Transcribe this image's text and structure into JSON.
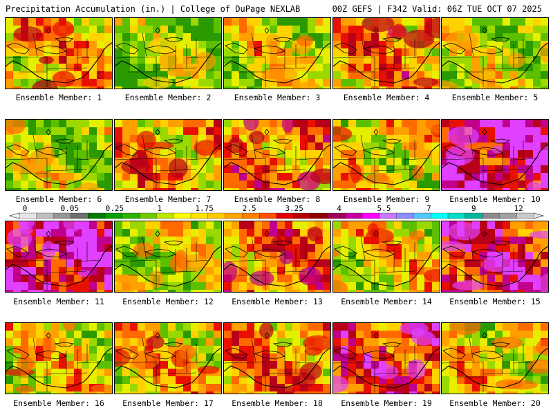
{
  "header": {
    "title": "Precipitation Accumulation (in.) | College of DuPage NEXLAB",
    "run_info": "00Z GEFS | F342 Valid: 06Z TUE OCT 07 2025"
  },
  "caption_prefix": "Ensemble Member: ",
  "members": [
    {
      "id": 1,
      "label": "Ensemble Member: 1",
      "intensity": 0.45
    },
    {
      "id": 2,
      "label": "Ensemble Member: 2",
      "intensity": 0.15
    },
    {
      "id": 3,
      "label": "Ensemble Member: 3",
      "intensity": 0.3
    },
    {
      "id": 4,
      "label": "Ensemble Member: 4",
      "intensity": 0.5
    },
    {
      "id": 5,
      "label": "Ensemble Member: 5",
      "intensity": 0.25
    },
    {
      "id": 6,
      "label": "Ensemble Member: 6",
      "intensity": 0.2
    },
    {
      "id": 7,
      "label": "Ensemble Member: 7",
      "intensity": 0.45
    },
    {
      "id": 8,
      "label": "Ensemble Member: 8",
      "intensity": 0.55
    },
    {
      "id": 9,
      "label": "Ensemble Member: 9",
      "intensity": 0.35
    },
    {
      "id": 10,
      "label": "Ensemble Member: 10",
      "intensity": 0.85
    },
    {
      "id": 11,
      "label": "Ensemble Member: 11",
      "intensity": 0.85
    },
    {
      "id": 12,
      "label": "Ensemble Member: 12",
      "intensity": 0.25
    },
    {
      "id": 13,
      "label": "Ensemble Member: 13",
      "intensity": 0.55
    },
    {
      "id": 14,
      "label": "Ensemble Member: 14",
      "intensity": 0.35
    },
    {
      "id": 15,
      "label": "Ensemble Member: 15",
      "intensity": 0.75
    },
    {
      "id": 16,
      "label": "Ensemble Member: 16",
      "intensity": 0.35
    },
    {
      "id": 17,
      "label": "Ensemble Member: 17",
      "intensity": 0.4
    },
    {
      "id": 18,
      "label": "Ensemble Member: 18",
      "intensity": 0.5
    },
    {
      "id": 19,
      "label": "Ensemble Member: 19",
      "intensity": 0.7
    },
    {
      "id": 20,
      "label": "Ensemble Member: 20",
      "intensity": 0.35
    }
  ],
  "legend": {
    "tick_labels": [
      "0",
      "0.05",
      "0.25",
      "1",
      "1.75",
      "2.5",
      "3.25",
      "4",
      "5.5",
      "7",
      "9",
      "12"
    ],
    "colors": [
      "#e6e6e6",
      "#bebebe",
      "#969696",
      "#6e6e6e",
      "#007a00",
      "#00a000",
      "#2db100",
      "#6ec800",
      "#bde600",
      "#ffff00",
      "#ffe300",
      "#ffc800",
      "#ffa500",
      "#ff8000",
      "#ff5000",
      "#e00000",
      "#b40000",
      "#8c0000",
      "#a0005a",
      "#c800a0",
      "#ff00ff",
      "#c878ff",
      "#8c8cff",
      "#50c8ff",
      "#00ffff",
      "#00dcc8",
      "#00b4a0",
      "#8c8c8c",
      "#a0a0a0",
      "#c8c8c8"
    ]
  }
}
